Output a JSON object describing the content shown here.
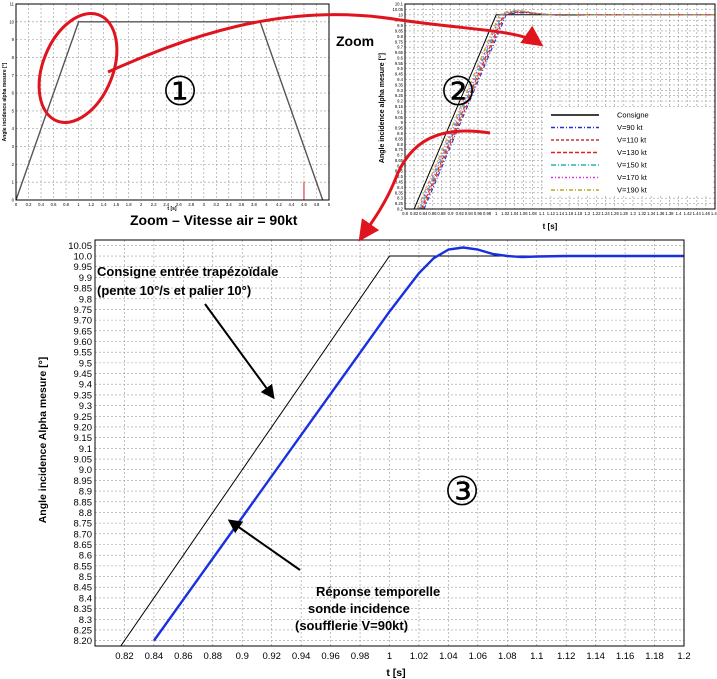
{
  "chart_data": [
    {
      "id": "overview",
      "type": "line",
      "title": "",
      "xlabel": "t [s]",
      "ylabel": "Angle incidence alpha mesure [°]",
      "xlim": [
        0,
        5
      ],
      "ylim": [
        0,
        11
      ],
      "x_ticks": [
        "0",
        "0.2",
        "0.4",
        "0.6",
        "0.8",
        "1",
        "1.2",
        "1.4",
        "1.6",
        "1.8",
        "2",
        "2.2",
        "2.4",
        "2.6",
        "2.8",
        "3",
        "3.2",
        "3.4",
        "3.6",
        "3.8",
        "4",
        "4.2",
        "4.4",
        "4.6",
        "4.8",
        "5"
      ],
      "y_ticks": [
        "0",
        "1",
        "2",
        "3",
        "4",
        "5",
        "6",
        "7",
        "8",
        "9",
        "10",
        "11"
      ],
      "series": [
        {
          "name": "Consigne",
          "x": [
            0,
            1,
            3.9,
            4.9
          ],
          "y": [
            0,
            10,
            10,
            0
          ]
        }
      ],
      "badge": "①"
    },
    {
      "id": "zoom-all-speeds",
      "type": "line",
      "title": "Zoom",
      "xlabel": "t [s]",
      "ylabel": "Angle incidence alpha mesure [°]",
      "xlim": [
        0.8,
        1.48
      ],
      "ylim": [
        8.2,
        10.1
      ],
      "x_ticks": [
        "0.8",
        "0.82",
        "0.84",
        "0.86",
        "0.88",
        "0.9",
        "0.92",
        "0.94",
        "0.96",
        "0.98",
        "1",
        "1.02",
        "1.04",
        "1.06",
        "1.08",
        "1.1",
        "1.12",
        "1.14",
        "1.16",
        "1.18",
        "1.2",
        "1.22",
        "1.24",
        "1.26",
        "1.28",
        "1.3",
        "1.32",
        "1.34",
        "1.36",
        "1.38",
        "1.4",
        "1.42",
        "1.44",
        "1.46",
        "1.48"
      ],
      "y_ticks": [
        "8.2",
        "8.25",
        "8.3",
        "8.35",
        "8.4",
        "8.45",
        "8.5",
        "8.55",
        "8.6",
        "8.65",
        "8.7",
        "8.75",
        "8.8",
        "8.85",
        "8.9",
        "8.95",
        "9",
        "9.05",
        "9.1",
        "9.15",
        "9.2",
        "9.25",
        "9.3",
        "9.35",
        "9.4",
        "9.45",
        "9.5",
        "9.55",
        "9.6",
        "9.65",
        "9.7",
        "9.75",
        "9.8",
        "9.85",
        "9.9",
        "9.95",
        "10",
        "10.05",
        "10.1"
      ],
      "legend": [
        "Consigne",
        "V=90 kt",
        "V=110 kt",
        "V=130 kt",
        "V=150 kt",
        "V=170 kt",
        "V=190 kt"
      ],
      "series_colors": [
        "#000000",
        "#2233cc",
        "#cc3333",
        "#dd2222",
        "#22b5b5",
        "#dd33dd",
        "#b8a822"
      ],
      "series_delay": [
        0,
        0.022,
        0.019,
        0.016,
        0.013,
        0.01,
        0.007
      ],
      "badge": "②"
    },
    {
      "id": "zoom-90kt",
      "type": "line",
      "title": "Zoom – Vitesse air = 90kt",
      "xlabel": "t [s]",
      "ylabel": "Angle incidence Alpha mesure [°]",
      "xlim": [
        0.8,
        1.2
      ],
      "ylim": [
        8.175,
        10.075
      ],
      "x_ticks": [
        "0.82",
        "0.84",
        "0.86",
        "0.88",
        "0.9",
        "0.92",
        "0.94",
        "0.96",
        "0.98",
        "1",
        "1.02",
        "1.04",
        "1.06",
        "1.08",
        "1.1",
        "1.12",
        "1.14",
        "1.16",
        "1.18",
        "1.2"
      ],
      "y_ticks": [
        "8.20",
        "8.25",
        "8.3",
        "8.35",
        "8.4",
        "8.45",
        "8.5",
        "8.55",
        "8.6",
        "8.65",
        "8.70",
        "8.75",
        "8.8",
        "8.85",
        "8.9",
        "8.95",
        "9.0",
        "9.05",
        "9.1",
        "9.15",
        "9.20",
        "9.25",
        "9.3",
        "9.35",
        "9.4",
        "9.45",
        "9.5",
        "9.55",
        "9.60",
        "9.65",
        "9.70",
        "9.75",
        "9.8",
        "9.85",
        "9.9",
        "9.95",
        "10.0",
        "10.05"
      ],
      "series": [
        {
          "name": "Consigne",
          "color": "#000000",
          "x": [
            0.8,
            1.0,
            1.2
          ],
          "y": [
            8.0,
            10.0,
            10.0
          ]
        },
        {
          "name": "Réponse sonde (V=90kt)",
          "color": "#1a2fe0",
          "x": [
            0.84,
            1.0,
            1.01,
            1.02,
            1.03,
            1.04,
            1.05,
            1.06,
            1.07,
            1.08,
            1.09,
            1.1,
            1.12,
            1.2
          ],
          "y": [
            8.2,
            9.74,
            9.83,
            9.92,
            9.99,
            10.03,
            10.04,
            10.03,
            10.01,
            10.0,
            9.995,
            9.998,
            10.0,
            10.0
          ]
        }
      ],
      "annotations": {
        "consigne": [
          "Consigne entrée trapézoïdale",
          "(pente 10°/s et palier 10°)"
        ],
        "reponse": [
          "Réponse temporelle",
          "sonde incidence",
          "(soufflerie V=90kt)"
        ]
      },
      "badge": "③"
    }
  ]
}
